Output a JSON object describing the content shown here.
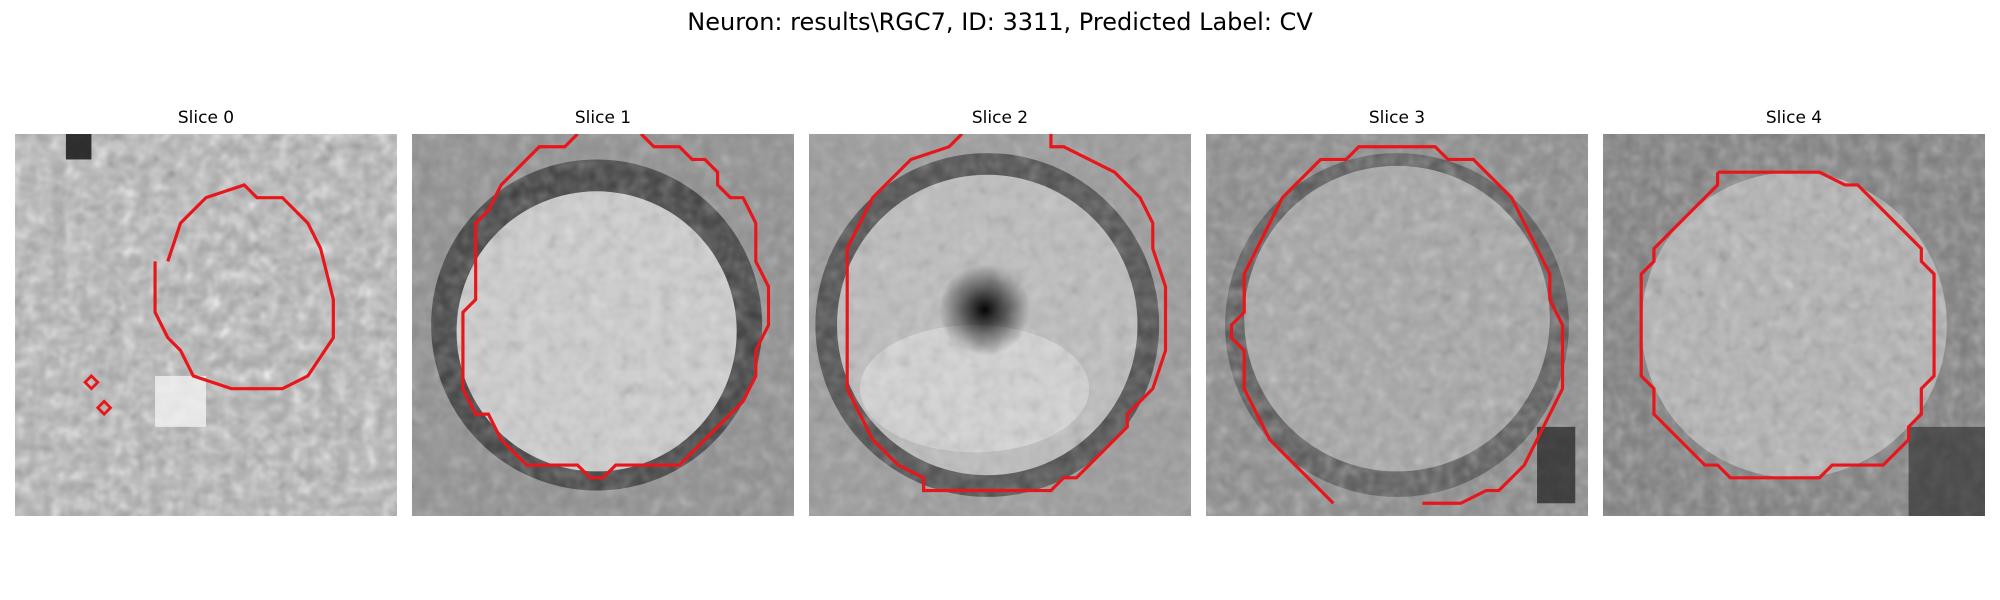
{
  "figure": {
    "title": "Neuron: results\\RGC7, ID: 3311, Predicted Label: CV"
  },
  "slices": [
    {
      "title": "Slice 0"
    },
    {
      "title": "Slice 1"
    },
    {
      "title": "Slice 2"
    },
    {
      "title": "Slice 3"
    },
    {
      "title": "Slice 4"
    }
  ],
  "colors": {
    "contour": "#e8161b",
    "background": "#ffffff"
  }
}
